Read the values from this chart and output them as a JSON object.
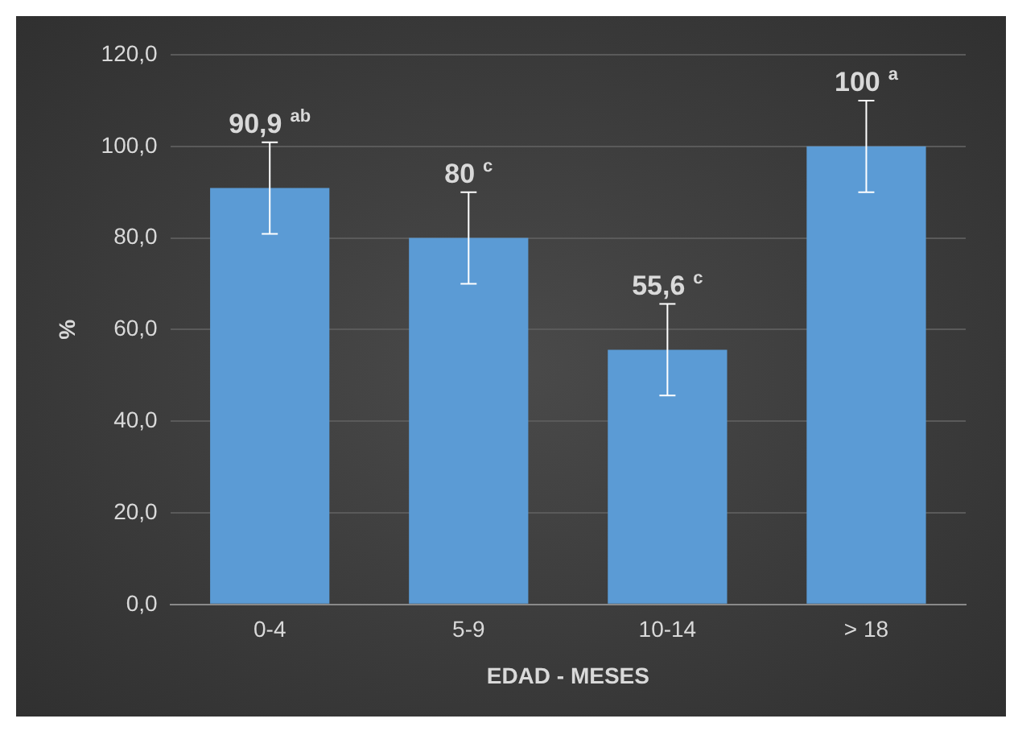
{
  "chart_data": {
    "type": "bar",
    "xlabel": "EDAD - MESES",
    "ylabel": "%",
    "categories": [
      "0-4",
      "5-9",
      "10-14",
      "> 18"
    ],
    "values": [
      90.9,
      80,
      55.6,
      100
    ],
    "color": "#5b9bd5",
    "errors": [
      10,
      10,
      10,
      10
    ],
    "value_labels": [
      "90,9$^{ab}$",
      "80$^{c}$",
      "55,6$^{c}$",
      "100$^{a}$"
    ],
    "ylim": [
      0,
      120
    ],
    "yticks": [
      {
        "value": 0,
        "label": "0,0"
      },
      {
        "value": 20,
        "label": "20,0"
      },
      {
        "value": 40,
        "label": "40,0"
      },
      {
        "value": 60,
        "label": "60,0"
      },
      {
        "value": 80,
        "label": "80,0"
      },
      {
        "value": 100,
        "label": "100,0"
      },
      {
        "value": 120,
        "label": "120,0"
      }
    ],
    "grid": "y",
    "legend": false
  }
}
